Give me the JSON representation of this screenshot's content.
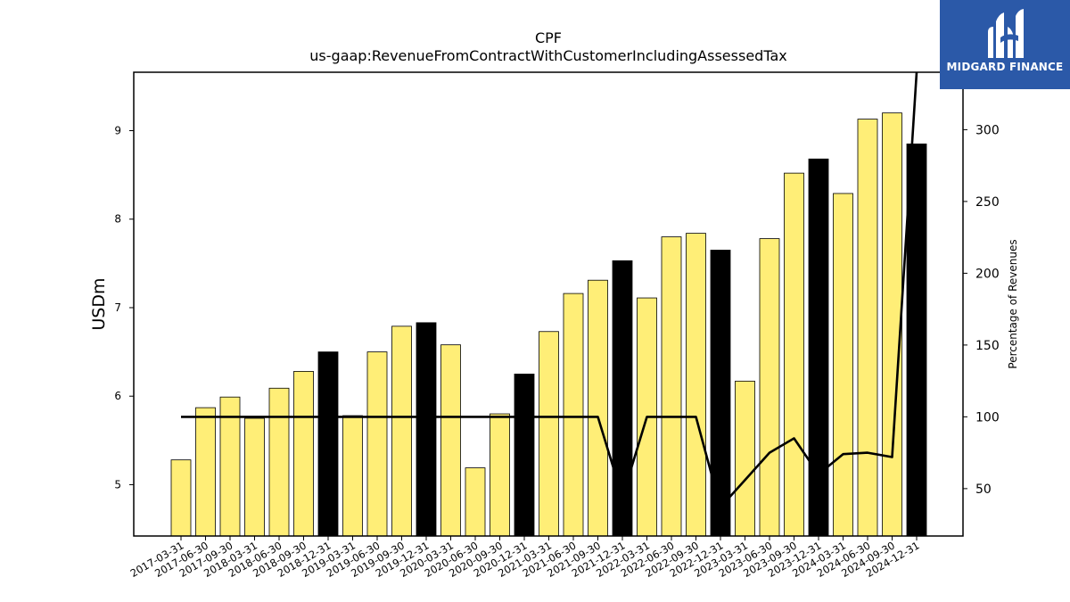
{
  "brand": {
    "name": "MIDGARD FINANCE",
    "bg_color": "#2b59a8"
  },
  "chart_data": {
    "type": "bar",
    "title": "CPF",
    "subtitle": "us-gaap:RevenueFromContractWithCustomerIncludingAssessedTax",
    "ylabel": "USDm",
    "y2label": "Percentage of Revenues",
    "ylim": [
      4.42,
      9.66
    ],
    "y2lim": [
      17,
      340
    ],
    "yticks": [
      5,
      6,
      7,
      8,
      9
    ],
    "y2ticks": [
      50,
      100,
      150,
      200,
      250,
      300
    ],
    "bar_colors": {
      "quarter": "#ffee77",
      "year_end": "#000000"
    },
    "categories": [
      "2017-03-31",
      "2017-06-30",
      "2017-09-30",
      "2018-03-31",
      "2018-06-30",
      "2018-09-30",
      "2018-12-31",
      "2019-03-31",
      "2019-06-30",
      "2019-09-30",
      "2019-12-31",
      "2020-03-31",
      "2020-06-30",
      "2020-09-30",
      "2020-12-31",
      "2021-03-31",
      "2021-06-30",
      "2021-09-30",
      "2021-12-31",
      "2022-03-31",
      "2022-06-30",
      "2022-09-30",
      "2022-12-31",
      "2023-03-31",
      "2023-06-30",
      "2023-09-30",
      "2023-12-31",
      "2024-03-31",
      "2024-06-30",
      "2024-09-30",
      "2024-12-31"
    ],
    "series": [
      {
        "kind": "bar",
        "values": [
          5.28,
          5.87,
          5.99,
          5.75,
          6.09,
          6.28,
          6.5,
          5.78,
          6.5,
          6.79,
          6.83,
          6.58,
          5.19,
          5.8,
          6.25,
          6.73,
          7.16,
          7.31,
          7.53,
          7.11,
          7.8,
          7.84,
          7.65,
          6.17,
          7.78,
          8.52,
          8.68,
          8.29,
          9.13,
          9.2,
          8.85
        ]
      },
      {
        "kind": "line",
        "axis": "y2",
        "color": "#000000",
        "values": [
          100,
          100,
          100,
          100,
          100,
          100,
          100,
          100,
          100,
          100,
          100,
          100,
          100,
          100,
          100,
          100,
          100,
          100,
          44,
          100,
          100,
          100,
          37,
          56,
          75,
          85,
          60,
          74,
          75,
          72,
          340
        ]
      }
    ]
  }
}
